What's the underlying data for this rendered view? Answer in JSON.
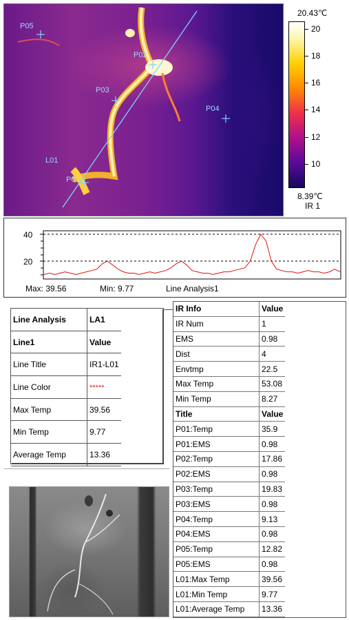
{
  "thermal": {
    "point_labels": [
      "P05",
      "P02",
      "P03",
      "P04",
      "L01",
      "P01"
    ]
  },
  "colorbar": {
    "max_label": "20.43℃",
    "min_label": "8.39℃",
    "ir_label": "IR 1",
    "ticks": [
      "20",
      "18",
      "16",
      "14",
      "12",
      "10"
    ]
  },
  "graph": {
    "y_ticks": [
      "40",
      "20"
    ],
    "max_text": "Max:  39.56",
    "min_text": "Min:  9.77",
    "title": "Line Analysis1",
    "profile": [
      10,
      11,
      10,
      11,
      12,
      11,
      10,
      11,
      12,
      13,
      14,
      18,
      20,
      17,
      14,
      12,
      11,
      11,
      10,
      11,
      12,
      11,
      12,
      13,
      15,
      18,
      20,
      17,
      13,
      12,
      11,
      11,
      10,
      11,
      12,
      12,
      13,
      14,
      15,
      20,
      32,
      40,
      35,
      20,
      14,
      13,
      12,
      12,
      11,
      12,
      13,
      12,
      12,
      11,
      12,
      14,
      12
    ]
  },
  "line_analysis": {
    "rows": [
      {
        "k": "Line Analysis",
        "v": "LA1"
      },
      {
        "k": "Line1",
        "v": "Value"
      },
      {
        "k": "Line Title",
        "v": "IR1-L01"
      },
      {
        "k": "Line Color",
        "v": "*****"
      },
      {
        "k": "Max Temp",
        "v": "39.56"
      },
      {
        "k": "Min Temp",
        "v": "9.77"
      },
      {
        "k": "Average Temp",
        "v": "13.36"
      }
    ]
  },
  "ir_info": {
    "rows": [
      {
        "k": "IR Info",
        "v": "Value"
      },
      {
        "k": "IR Num",
        "v": "1"
      },
      {
        "k": "EMS",
        "v": "0.98"
      },
      {
        "k": "Dist",
        "v": "4"
      },
      {
        "k": "Envtmp",
        "v": "22.5"
      },
      {
        "k": "Max Temp",
        "v": "53.08"
      },
      {
        "k": "Min Temp",
        "v": "8.27"
      },
      {
        "k": "Title",
        "v": "Value"
      },
      {
        "k": "P01:Temp",
        "v": "35.9"
      },
      {
        "k": "P01:EMS",
        "v": "0.98"
      },
      {
        "k": "P02:Temp",
        "v": "17.86"
      },
      {
        "k": "P02:EMS",
        "v": "0.98"
      },
      {
        "k": "P03:Temp",
        "v": "19.83"
      },
      {
        "k": "P03:EMS",
        "v": "0.98"
      },
      {
        "k": "P04:Temp",
        "v": "9.13"
      },
      {
        "k": "P04:EMS",
        "v": "0.98"
      },
      {
        "k": "P05:Temp",
        "v": "12.82"
      },
      {
        "k": "P05:EMS",
        "v": "0.98"
      },
      {
        "k": "L01:Max Temp",
        "v": "39.56"
      },
      {
        "k": "L01:Min Temp",
        "v": "9.77"
      },
      {
        "k": "L01:Average Temp",
        "v": "13.36"
      }
    ]
  },
  "colors": {
    "measure_marker": "#7fd4ff",
    "profile_line": "#e01010",
    "line_color_swatch": "#e02020"
  }
}
